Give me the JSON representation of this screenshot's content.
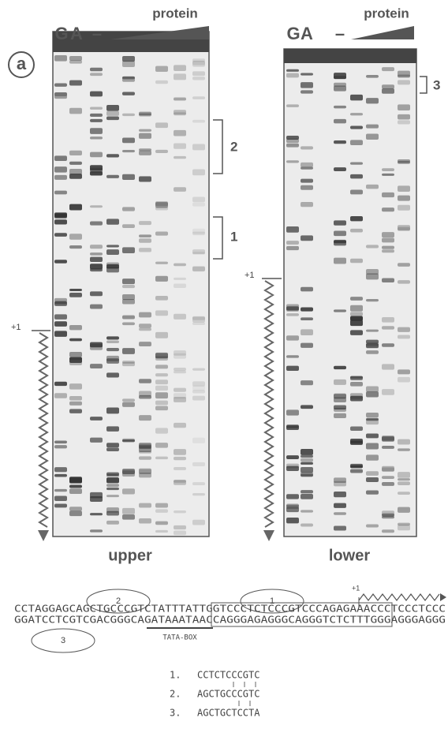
{
  "figure": {
    "panel_label": "a",
    "left_gel": {
      "protein_label": "protein",
      "lanes": [
        "G",
        "A",
        "–"
      ],
      "brackets": [
        "2",
        "1"
      ],
      "start_label": "+1",
      "caption": "upper"
    },
    "right_gel": {
      "protein_label": "protein",
      "lanes": [
        "G",
        "A",
        "–"
      ],
      "brackets": [
        "3"
      ],
      "start_label": "+1",
      "caption": "lower"
    }
  },
  "sequence": {
    "top": "CCTAGGAGCAGCTGCCCGTCTATTTATTGGTCCCTCTCCCGTCCCAGAGAAACCCTCCCTCCC",
    "bottom": "GGATCCTCGTCGACGGGCAGATAAATAACCAGGGAGAGGGCAGGGTCTCTTTGGGAGGGAGGG",
    "sites": [
      "2",
      "1",
      "3"
    ],
    "start_label": "+1",
    "tata_label": "TATA-BOX"
  },
  "alignment": [
    {
      "number": "1.",
      "sequence": "CCTCTCCCGTC"
    },
    {
      "number": "2.",
      "sequence": "AGCTGCCCGTC"
    },
    {
      "number": "3.",
      "sequence": "AGCTGCTCCTA"
    }
  ]
}
